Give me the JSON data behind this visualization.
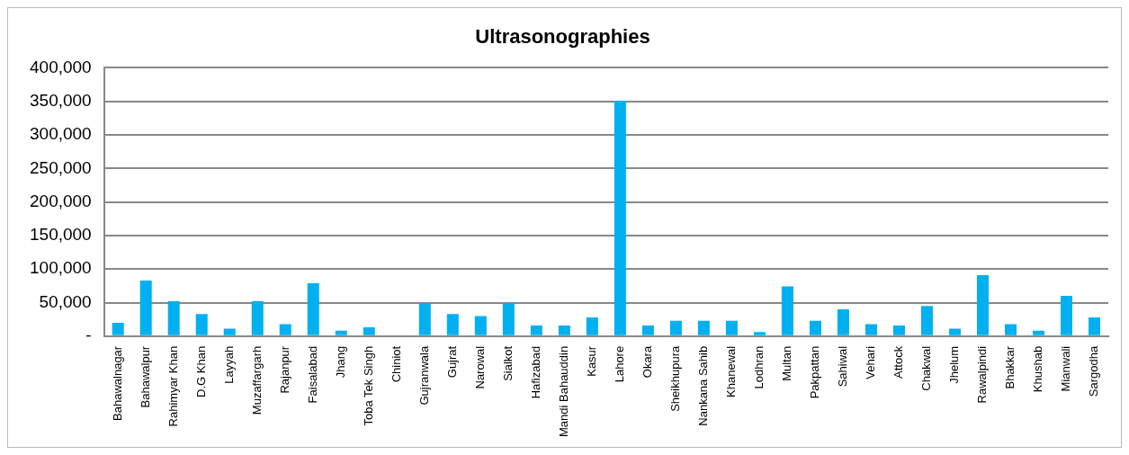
{
  "chart_data": {
    "type": "bar",
    "title": "Ultrasonographies",
    "categories": [
      "Bahawalnagar",
      "Bahawalpur",
      "Rahimyar Khan",
      "D.G Khan",
      "Layyah",
      "Muzaffargarh",
      "Rajanpur",
      "Faisalabad",
      "Jhang",
      "Toba Tek Singh",
      "Chiniot",
      "Gujranwala",
      "Gujrat",
      "Narowal",
      "Sialkot",
      "Hafizabad",
      "Mandi Bahauddin",
      "Kasur",
      "Lahore",
      "Okara",
      "Sheikhupura",
      "Nankana Sahib",
      "Khanewal",
      "Lodhran",
      "Multan",
      "Pakpattan",
      "Sahiwal",
      "Vehari",
      "Attock",
      "Chakwal",
      "Jhelum",
      "Rawalpindi",
      "Bhakkar",
      "Khushab",
      "Mianwali",
      "Sargodha"
    ],
    "values": [
      20000,
      83000,
      52000,
      33000,
      11000,
      52000,
      18000,
      79000,
      8000,
      13000,
      0,
      49000,
      33000,
      30000,
      49000,
      16000,
      16000,
      28000,
      351000,
      16000,
      23000,
      23000,
      23000,
      6000,
      74000,
      23000,
      40000,
      18000,
      16000,
      45000,
      11000,
      91000,
      18000,
      8000,
      60000,
      28000
    ],
    "color": "#00b0f0",
    "ylim": [
      0,
      400000
    ],
    "yticks": [
      {
        "value": 0,
        "label": "-"
      },
      {
        "value": 50000,
        "label": "50,000"
      },
      {
        "value": 100000,
        "label": "100,000"
      },
      {
        "value": 150000,
        "label": "150,000"
      },
      {
        "value": 200000,
        "label": "200,000"
      },
      {
        "value": 250000,
        "label": "250,000"
      },
      {
        "value": 300000,
        "label": "300,000"
      },
      {
        "value": 350000,
        "label": "350,000"
      },
      {
        "value": 400000,
        "label": "400,000"
      }
    ],
    "grid": "y"
  }
}
